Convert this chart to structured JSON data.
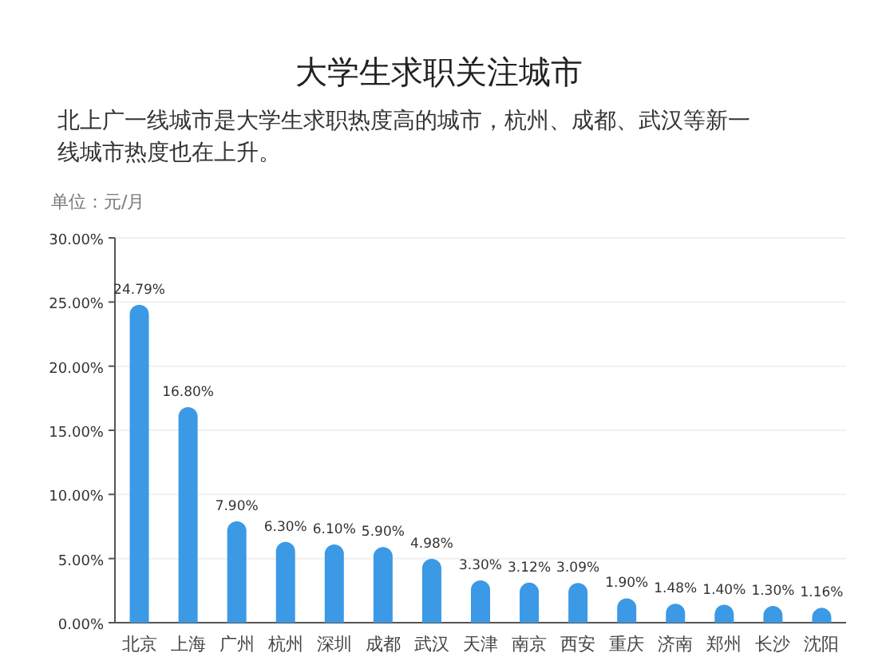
{
  "chart_data": {
    "type": "bar",
    "title": "大学生求职关注城市",
    "subtitle": "北上广一线城市是大学生求职热度高的城市，杭州、成都、武汉等新一线城市热度也在上升。",
    "annotations": [
      "单位：元/月"
    ],
    "categories": [
      "北京",
      "上海",
      "广州",
      "杭州",
      "深圳",
      "成都",
      "武汉",
      "天津",
      "南京",
      "西安",
      "重庆",
      "济南",
      "郑州",
      "长沙",
      "沈阳"
    ],
    "values": [
      24.79,
      16.8,
      7.9,
      6.3,
      6.1,
      5.9,
      4.98,
      3.3,
      3.12,
      3.09,
      1.9,
      1.48,
      1.4,
      1.3,
      1.16
    ],
    "value_labels": [
      "24.79%",
      "16.80%",
      "7.90%",
      "6.30%",
      "6.10%",
      "5.90%",
      "4.98%",
      "3.30%",
      "3.12%",
      "3.09%",
      "1.90%",
      "1.48%",
      "1.40%",
      "1.30%",
      "1.16%"
    ],
    "color": "#3b99e6",
    "ylim": [
      0,
      30
    ],
    "yticks": [
      {
        "value": 0,
        "label": "0.00%"
      },
      {
        "value": 5,
        "label": "5.00%"
      },
      {
        "value": 10,
        "label": "10.00%"
      },
      {
        "value": 15,
        "label": "15.00%"
      },
      {
        "value": 20,
        "label": "20.00%"
      },
      {
        "value": 25,
        "label": "25.00%"
      },
      {
        "value": 30,
        "label": "30.00%"
      }
    ],
    "grid": "y"
  }
}
